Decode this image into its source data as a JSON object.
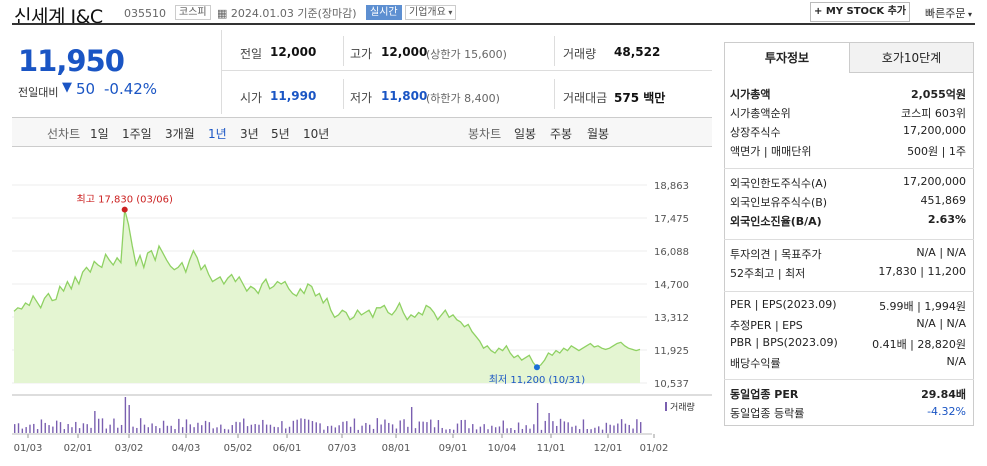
{
  "header": {
    "name": "신세계 I&C",
    "code": "035510",
    "market_badge": "코스피",
    "date_text": "2024.01.03 기준(장마감)",
    "realtime_label": "실시간",
    "company_label": "기업개요",
    "mystock_label": "+ MY STOCK 추가",
    "quick_order": "빠른주문"
  },
  "price": {
    "current": "11,950",
    "compare_label": "전일대비",
    "change": "50",
    "change_pct": "-0.42%"
  },
  "summary": {
    "prev_label": "전일",
    "prev": "12,000",
    "high_label": "고가",
    "high": "12,000",
    "upper_text": "(상한가 15,600)",
    "vol_label": "거래량",
    "vol": "48,522",
    "open_label": "시가",
    "open": "11,990",
    "low_label": "저가",
    "low": "11,800",
    "lower_text": "(하한가 8,400)",
    "amt_label": "거래대금",
    "amt": "575 백만"
  },
  "tabs": {
    "line_label": "선차트",
    "periods": [
      "1일",
      "1주일",
      "3개월",
      "1년",
      "3년",
      "5년",
      "10년"
    ],
    "candle_label": "봉차트",
    "candles": [
      "일봉",
      "주봉",
      "월봉"
    ]
  },
  "chart_data": {
    "type": "area",
    "yticks": [
      "18,863",
      "17,475",
      "16,088",
      "14,700",
      "13,312",
      "11,925",
      "10,537"
    ],
    "xticks": [
      "01/03",
      "02/01",
      "03/02",
      "04/03",
      "05/02",
      "06/01",
      "07/03",
      "08/01",
      "09/01",
      "10/04",
      "11/01",
      "12/01",
      "01/02"
    ],
    "ylim": [
      10537,
      18863
    ],
    "max_label": "최고 17,830 (03/06)",
    "min_label": "최저 11,200 (10/31)",
    "volume_label": "거래량",
    "values": [
      13550,
      13700,
      13650,
      13900,
      13800,
      14200,
      13950,
      13700,
      14100,
      14300,
      14000,
      14050,
      14600,
      14400,
      14800,
      14500,
      15000,
      14700,
      15200,
      15400,
      15200,
      15650,
      15500,
      15400,
      15950,
      15700,
      15500,
      15800,
      15600,
      17830,
      17200,
      16300,
      15500,
      15900,
      15400,
      16000,
      16100,
      15700,
      16300,
      16000,
      15700,
      15450,
      15300,
      15400,
      15600,
      15200,
      15700,
      16100,
      15800,
      15300,
      15500,
      15100,
      14800,
      14900,
      15000,
      14700,
      14950,
      15100,
      14800,
      15000,
      14700,
      14400,
      14600,
      14500,
      14300,
      14700,
      14900,
      14500,
      14600,
      14800,
      14700,
      14800,
      14500,
      14300,
      14200,
      14500,
      14300,
      14700,
      14600,
      14200,
      14300,
      13900,
      14100,
      13600,
      13300,
      13400,
      13600,
      13500,
      13200,
      13300,
      13600,
      13400,
      13500,
      13600,
      13300,
      13700,
      13700,
      13800,
      13500,
      13400,
      13600,
      13900,
      13500,
      13200,
      13400,
      13300,
      13500,
      13400,
      13800,
      13700,
      13500,
      13200,
      13400,
      13600,
      13300,
      13400,
      13200,
      13100,
      12900,
      13000,
      12700,
      12500,
      12300,
      12000,
      12100,
      11900,
      11800,
      12000,
      11900,
      12100,
      11800,
      11600,
      11700,
      11500,
      11600,
      11700,
      11400,
      11200,
      11300,
      11500,
      11800,
      11700,
      11900,
      11800,
      12000,
      11900,
      12100,
      12000,
      11900,
      12000,
      12100,
      12200,
      12050,
      12100,
      12000,
      11950,
      12000,
      12100,
      12200,
      12250,
      12100,
      12000,
      11950,
      11900,
      11950
    ]
  },
  "panel": {
    "tab_info": "투자정보",
    "tab_quote": "호가10단계",
    "rows1": [
      [
        "시가총액",
        "2,055억원"
      ],
      [
        "시가총액순위",
        "코스피 603위"
      ],
      [
        "상장주식수",
        "17,200,000"
      ],
      [
        "액면가 | 매매단위",
        "500원 | 1주"
      ]
    ],
    "rows2": [
      [
        "외국인한도주식수(A)",
        "17,200,000"
      ],
      [
        "외국인보유주식수(B)",
        "451,869"
      ],
      [
        "외국인소진율(B/A)",
        "2.63%"
      ]
    ],
    "rows3": [
      [
        "투자의견 | 목표주가",
        "N/A | N/A"
      ],
      [
        "52주최고 | 최저",
        "17,830 | 11,200"
      ]
    ],
    "rows4": [
      [
        "PER | EPS(2023.09)",
        "5.99배 | 1,994원"
      ],
      [
        "추정PER | EPS",
        "N/A | N/A"
      ],
      [
        "PBR | BPS(2023.09)",
        "0.41배 | 28,820원"
      ],
      [
        "배당수익률",
        "N/A"
      ]
    ],
    "rows5": [
      [
        "동일업종 PER",
        "29.84배"
      ],
      [
        "동일업종 등락률",
        "-4.32%"
      ]
    ]
  }
}
